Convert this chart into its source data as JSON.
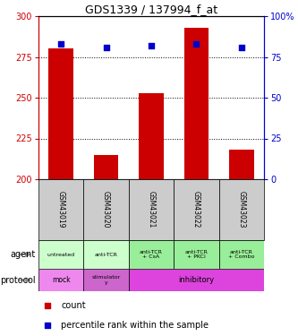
{
  "title": "GDS1339 / 137994_f_at",
  "samples": [
    "GSM43019",
    "GSM43020",
    "GSM43021",
    "GSM43022",
    "GSM43023"
  ],
  "count_values": [
    280,
    215,
    253,
    293,
    218
  ],
  "count_base": 200,
  "percentile_values": [
    83,
    81,
    82,
    83,
    81
  ],
  "ylim_left": [
    200,
    300
  ],
  "ylim_right": [
    0,
    100
  ],
  "yticks_left": [
    200,
    225,
    250,
    275,
    300
  ],
  "yticks_right": [
    0,
    25,
    50,
    75,
    100
  ],
  "agent_labels": [
    "untreated",
    "anti-TCR",
    "anti-TCR\n+ CsA",
    "anti-TCR\n+ PKCi",
    "anti-TCR\n+ Combo"
  ],
  "agent_colors": [
    "#ccffcc",
    "#ccffcc",
    "#99ee99",
    "#99ee99",
    "#99ee99"
  ],
  "bar_color": "#cc0000",
  "dot_color": "#0000cc",
  "sample_bg_color": "#cccccc",
  "left_axis_color": "#cc0000",
  "right_axis_color": "#0000cc",
  "legend_count_color": "#cc0000",
  "legend_pct_color": "#0000cc",
  "mock_color": "#ee88ee",
  "stimulatory_color": "#cc66cc",
  "inhibitory_color": "#dd44dd"
}
